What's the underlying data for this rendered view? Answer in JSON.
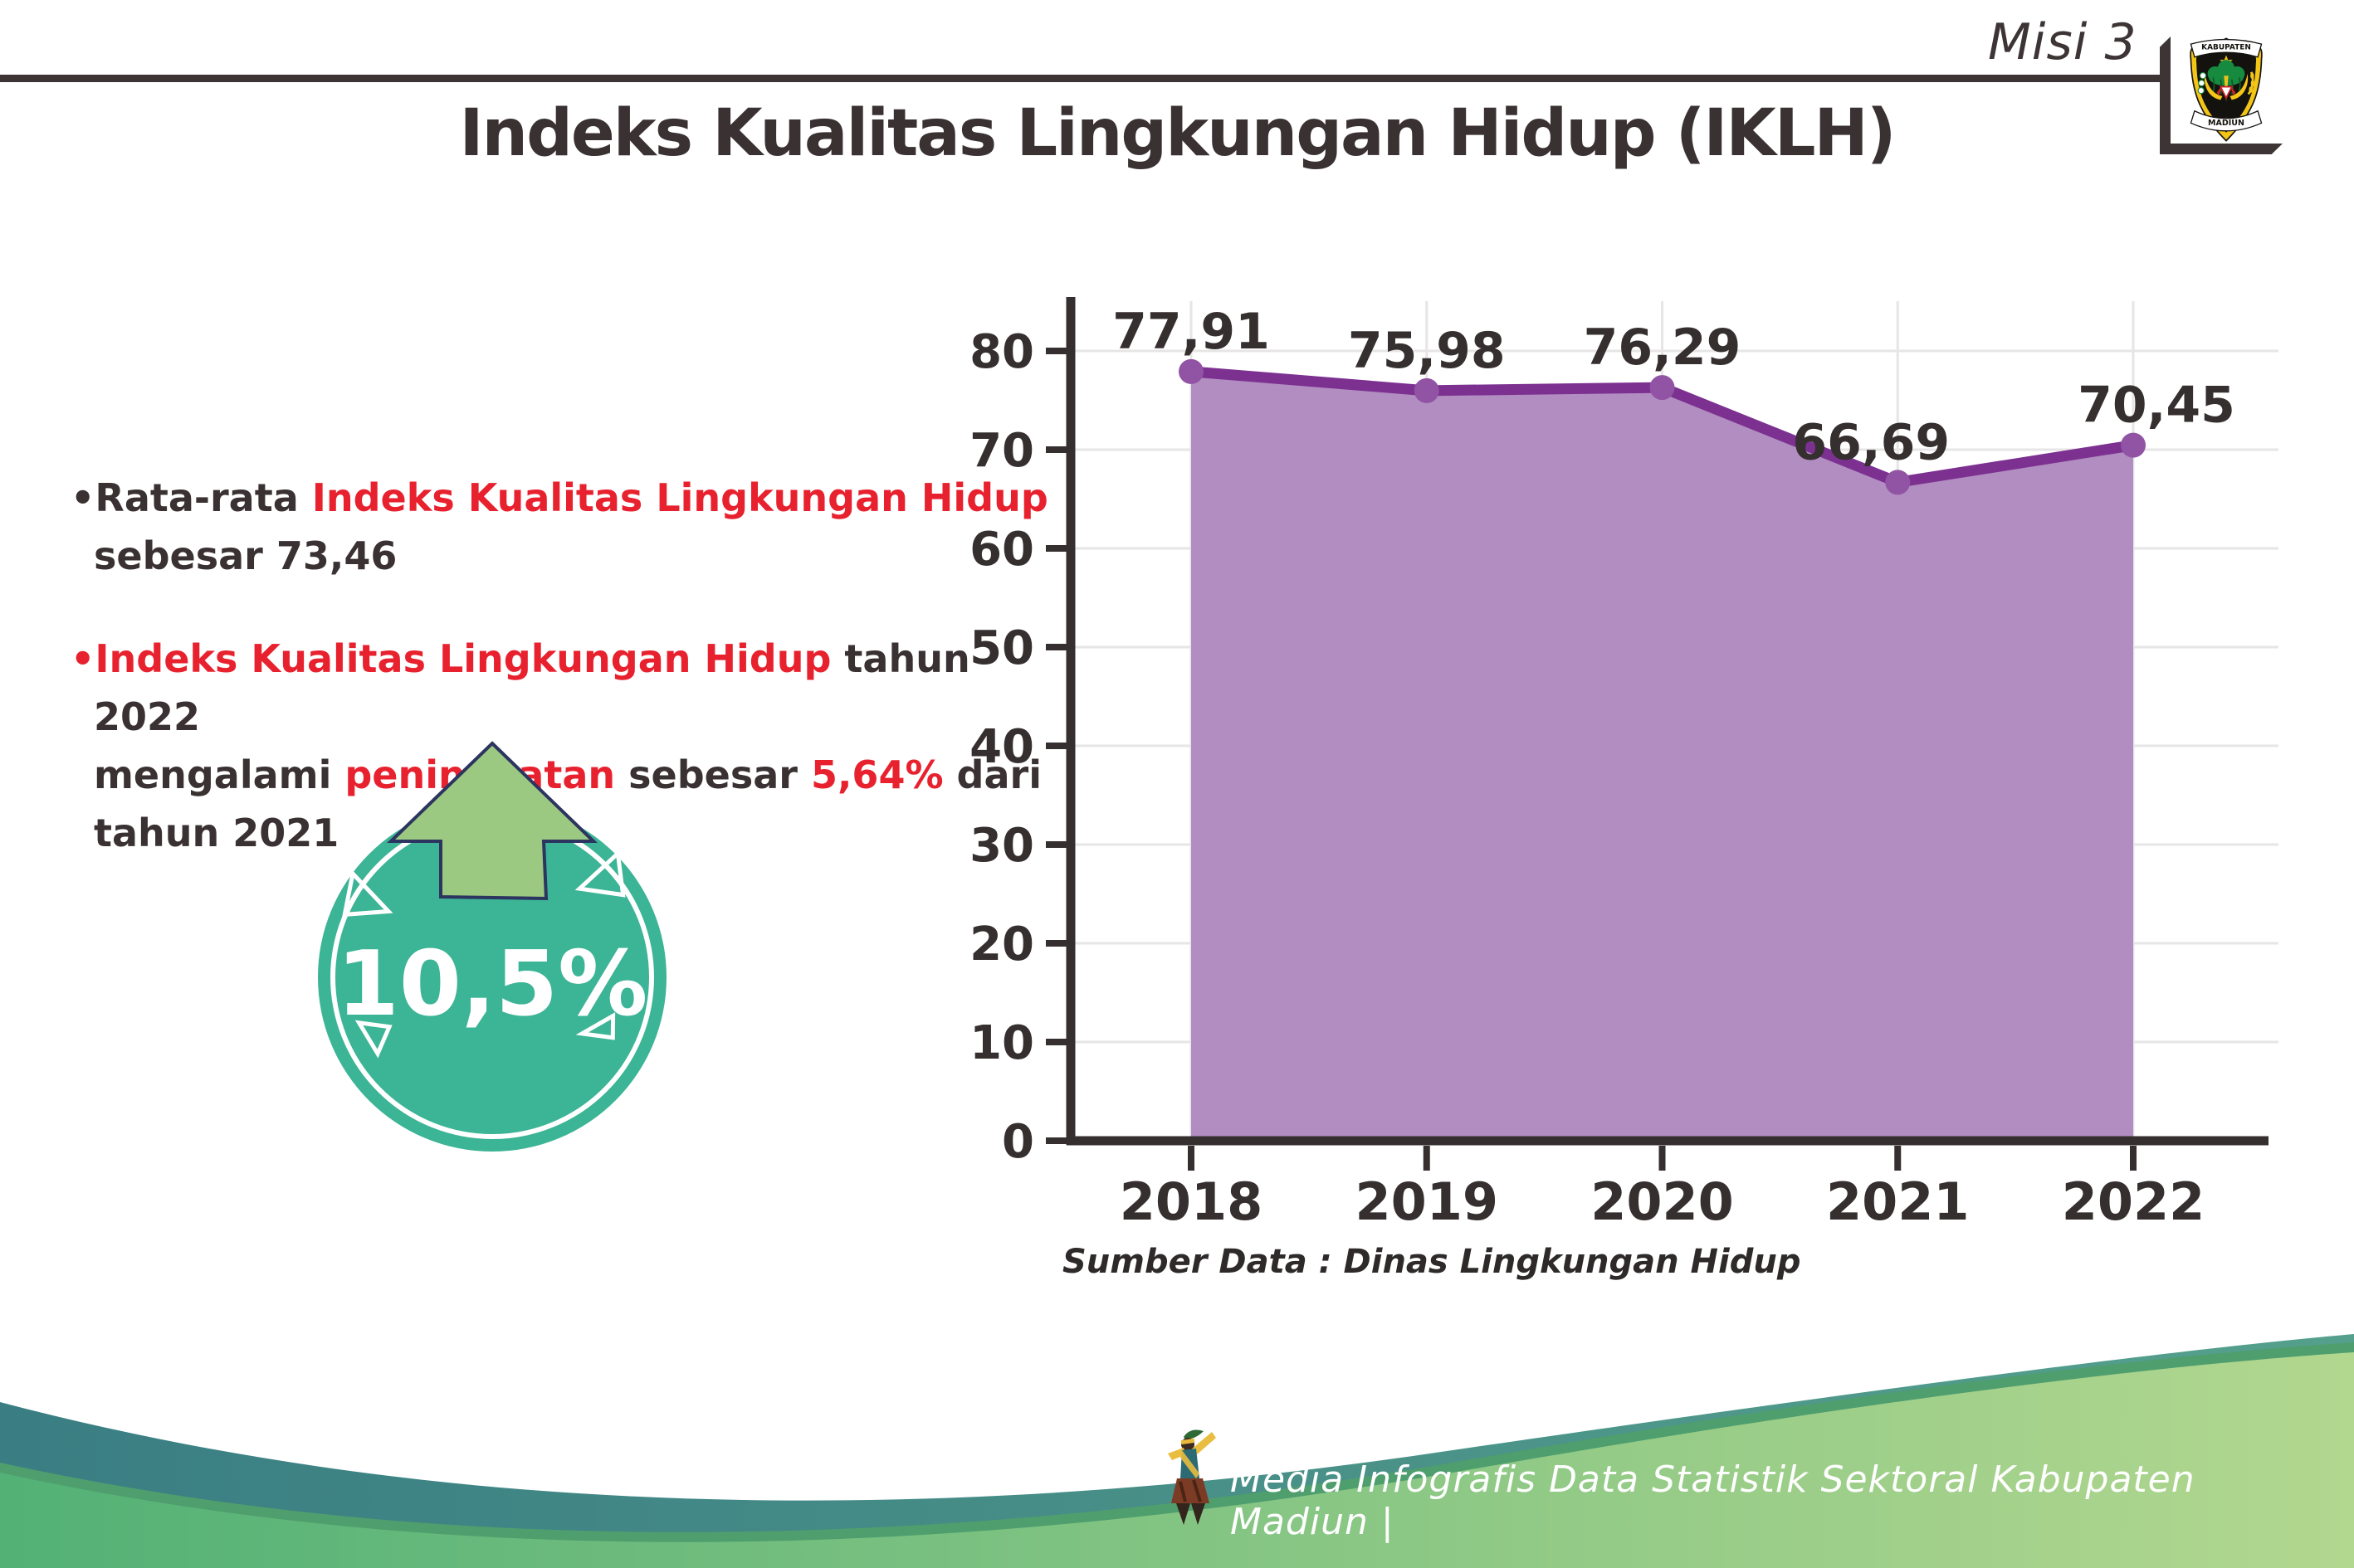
{
  "header": {
    "misi_label": "Misi 3",
    "logo": {
      "top_banner": "KABUPATEN",
      "bottom_banner": "MADIUN"
    }
  },
  "title": "Indeks Kualitas Lingkungan Hidup (IKLH)",
  "bullets": {
    "b1": {
      "s1": "•Rata-rata ",
      "s2": "Indeks Kualitas Lingkungan Hidup",
      "s3": "sebesar 73,46"
    },
    "b2": {
      "s1": "•Indeks Kualitas Lingkungan Hidup",
      "s2": " tahun 2022",
      "s3": "mengalami ",
      "s4": "peningkatan",
      "s5": " sebesar ",
      "s6": "5,64%",
      "s7": " dari",
      "s8": "tahun 2021"
    }
  },
  "badge": {
    "value": "10,5%"
  },
  "chart_data": {
    "type": "area",
    "categories": [
      "2018",
      "2019",
      "2020",
      "2021",
      "2022"
    ],
    "values": [
      77.91,
      75.98,
      76.29,
      66.69,
      70.45
    ],
    "value_labels": [
      "77,91",
      "75,98",
      "76,29",
      "66,69",
      "70,45"
    ],
    "title": "",
    "xlabel": "",
    "ylabel": "",
    "ylim": [
      0,
      80
    ],
    "ytick_step": 10,
    "grid": true,
    "legend": "none",
    "source_note": "Sumber Data : Dinas Lingkungan Hidup",
    "colors": {
      "line": "#7c3191",
      "fill": "#b28dc1",
      "marker": "#9153a3",
      "axis": "#362f2f",
      "grid": "#e7e5e5",
      "label": "#362f2f"
    }
  },
  "footer": {
    "text": "Media Infografis Data Statistik Sektoral Kabupaten Madiun |"
  },
  "colors": {
    "accent_red": "#e8212e",
    "text_dark": "#3a3133",
    "badge_teal": "#3cb496",
    "arrow_green": "#9cc981",
    "arrow_outline": "#2c3460",
    "wave_teal_dark": "#3a7e83",
    "wave_teal_light": "#55a08c",
    "wave_green_dark": "#53b176",
    "wave_green_light": "#b2d78f",
    "wave_edge": "#4f9e6e",
    "frame": "#3d3535"
  }
}
